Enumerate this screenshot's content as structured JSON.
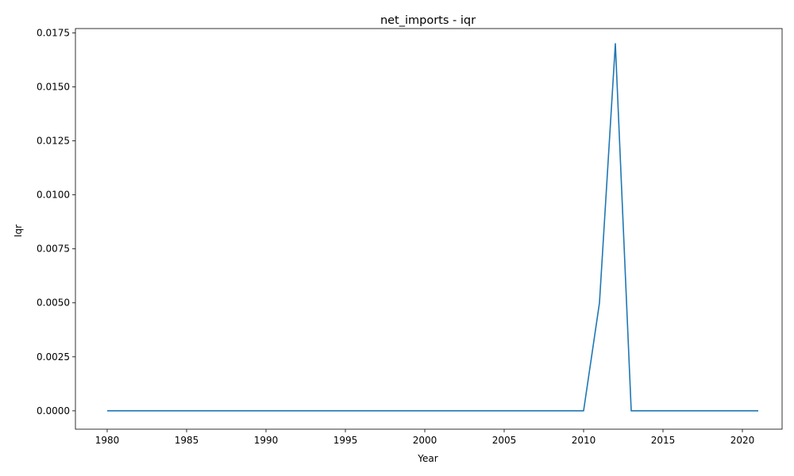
{
  "chart_data": {
    "type": "line",
    "title": "net_imports - iqr",
    "xlabel": "Year",
    "ylabel": "Iqr",
    "xlim": [
      1978,
      2022.5
    ],
    "ylim": [
      -0.00085,
      0.0177
    ],
    "xticks": [
      1980,
      1985,
      1990,
      1995,
      2000,
      2005,
      2010,
      2015,
      2020
    ],
    "yticks": [
      0.0,
      0.0025,
      0.005,
      0.0075,
      0.01,
      0.0125,
      0.015,
      0.0175
    ],
    "ytick_labels": [
      "0.0000",
      "0.0025",
      "0.0050",
      "0.0075",
      "0.0100",
      "0.0125",
      "0.0150",
      "0.0175"
    ],
    "grid": false,
    "series": [
      {
        "color": "#1f77b4",
        "x": [
          1980,
          1981,
          1982,
          1983,
          1984,
          1985,
          1986,
          1987,
          1988,
          1989,
          1990,
          1991,
          1992,
          1993,
          1994,
          1995,
          1996,
          1997,
          1998,
          1999,
          2000,
          2001,
          2002,
          2003,
          2004,
          2005,
          2006,
          2007,
          2008,
          2009,
          2010,
          2011,
          2012,
          2013,
          2014,
          2015,
          2016,
          2017,
          2018,
          2019,
          2020,
          2021
        ],
        "y": [
          0,
          0,
          0,
          0,
          0,
          0,
          0,
          0,
          0,
          0,
          0,
          0,
          0,
          0,
          0,
          0,
          0,
          0,
          0,
          0,
          0,
          0,
          0,
          0,
          0,
          0,
          0,
          0,
          0,
          0,
          0,
          0.005,
          0.017,
          0,
          0,
          0,
          0,
          0,
          0,
          0,
          0,
          0
        ]
      }
    ]
  }
}
